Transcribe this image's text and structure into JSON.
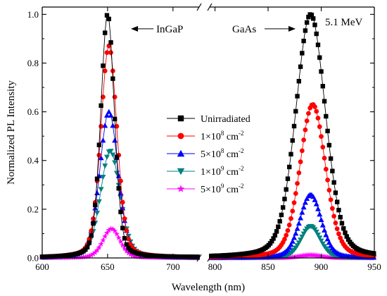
{
  "chart_data": {
    "type": "scatter",
    "title": "",
    "xlabel": "Wavelength (nm)",
    "ylabel": "Normalized PL Intensity",
    "ylim": [
      0,
      1.03
    ],
    "x_broken_axis": true,
    "xlim_segments": [
      [
        600,
        720
      ],
      [
        795,
        950
      ]
    ],
    "xticks_left": [
      "600",
      "650",
      "700"
    ],
    "xticks_right": [
      "800",
      "850",
      "900",
      "950"
    ],
    "yticks": [
      "0.0",
      "0.2",
      "0.4",
      "0.6",
      "0.8",
      "1.0"
    ],
    "annotations": [
      {
        "text": "InGaP",
        "arrow": "left",
        "at": [
          656,
          0.99
        ]
      },
      {
        "text": "GaAs",
        "arrow": "right",
        "at": [
          880,
          0.99
        ]
      },
      {
        "text": "5.1 MeV",
        "at": [
          915,
          0.97
        ]
      }
    ],
    "legend": {
      "placement": "center",
      "entries": [
        {
          "label": "Unirradiated",
          "marker": "square",
          "color": "#000000"
        },
        {
          "label": "1×10",
          "sup": "8",
          "unit": " cm",
          "unit_sup": "-2",
          "marker": "circle",
          "color": "#ff0000"
        },
        {
          "label": "5×10",
          "sup": "8",
          "unit": " cm",
          "unit_sup": "-2",
          "marker": "triangle-up",
          "color": "#0000ff"
        },
        {
          "label": "1×10",
          "sup": "9",
          "unit": " cm",
          "unit_sup": "-2",
          "marker": "triangle-down",
          "color": "#008080"
        },
        {
          "label": "5×10",
          "sup": "9",
          "unit": " cm",
          "unit_sup": "-2",
          "marker": "star",
          "color": "#ff00ff"
        }
      ]
    },
    "series": [
      {
        "name": "Unirradiated",
        "color": "#000000",
        "marker": "square",
        "peaks": [
          {
            "center": 650,
            "amp": 1.0,
            "width": 5.2
          },
          {
            "center": 890,
            "amp": 1.0,
            "width": 14
          }
        ]
      },
      {
        "name": "1×10^8 cm^-2",
        "color": "#ff0000",
        "marker": "circle",
        "peaks": [
          {
            "center": 651,
            "amp": 0.87,
            "width": 6.2
          },
          {
            "center": 892,
            "amp": 0.63,
            "width": 12
          }
        ]
      },
      {
        "name": "5×10^8 cm^-2",
        "color": "#0000ff",
        "marker": "triangle-up",
        "peaks": [
          {
            "center": 651,
            "amp": 0.6,
            "width": 7.0
          },
          {
            "center": 890,
            "amp": 0.26,
            "width": 10
          }
        ]
      },
      {
        "name": "1×10^9 cm^-2",
        "color": "#008080",
        "marker": "triangle-down",
        "peaks": [
          {
            "center": 652,
            "amp": 0.44,
            "width": 7.5
          },
          {
            "center": 890,
            "amp": 0.13,
            "width": 9
          }
        ]
      },
      {
        "name": "5×10^9 cm^-2",
        "color": "#ff00ff",
        "marker": "star",
        "peaks": [
          {
            "center": 653,
            "amp": 0.12,
            "width": 6.5
          },
          {
            "center": 890,
            "amp": 0.012,
            "width": 10
          }
        ]
      }
    ]
  }
}
